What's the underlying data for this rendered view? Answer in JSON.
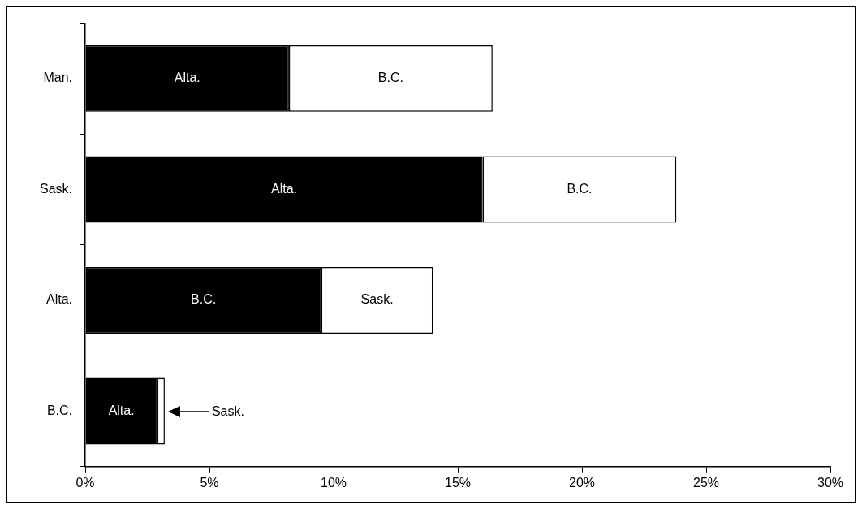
{
  "chart_data": {
    "type": "bar",
    "orientation": "horizontal",
    "stacked": true,
    "categories": [
      "Man.",
      "Sask.",
      "Alta.",
      "B.C."
    ],
    "series": [
      {
        "color": "#000000",
        "values": [
          8.2,
          16.0,
          9.5,
          2.9
        ],
        "value_labels": [
          "Alta.",
          "Alta.",
          "B.C.",
          "Alta."
        ]
      },
      {
        "color": "#ffffff",
        "values": [
          8.2,
          7.8,
          4.5,
          0.3
        ],
        "value_labels": [
          "B.C.",
          "B.C.",
          "Sask.",
          null
        ]
      }
    ],
    "xlim": [
      0,
      30
    ],
    "xticks": [
      {
        "value": 0,
        "label": "0%"
      },
      {
        "value": 5,
        "label": "5%"
      },
      {
        "value": 10,
        "label": "10%"
      },
      {
        "value": 15,
        "label": "15%"
      },
      {
        "value": 20,
        "label": "20%"
      },
      {
        "value": 25,
        "label": "25%"
      },
      {
        "value": 30,
        "label": "30%"
      }
    ],
    "grid": false,
    "legend": false,
    "annotations": [
      "Sask."
    ]
  }
}
